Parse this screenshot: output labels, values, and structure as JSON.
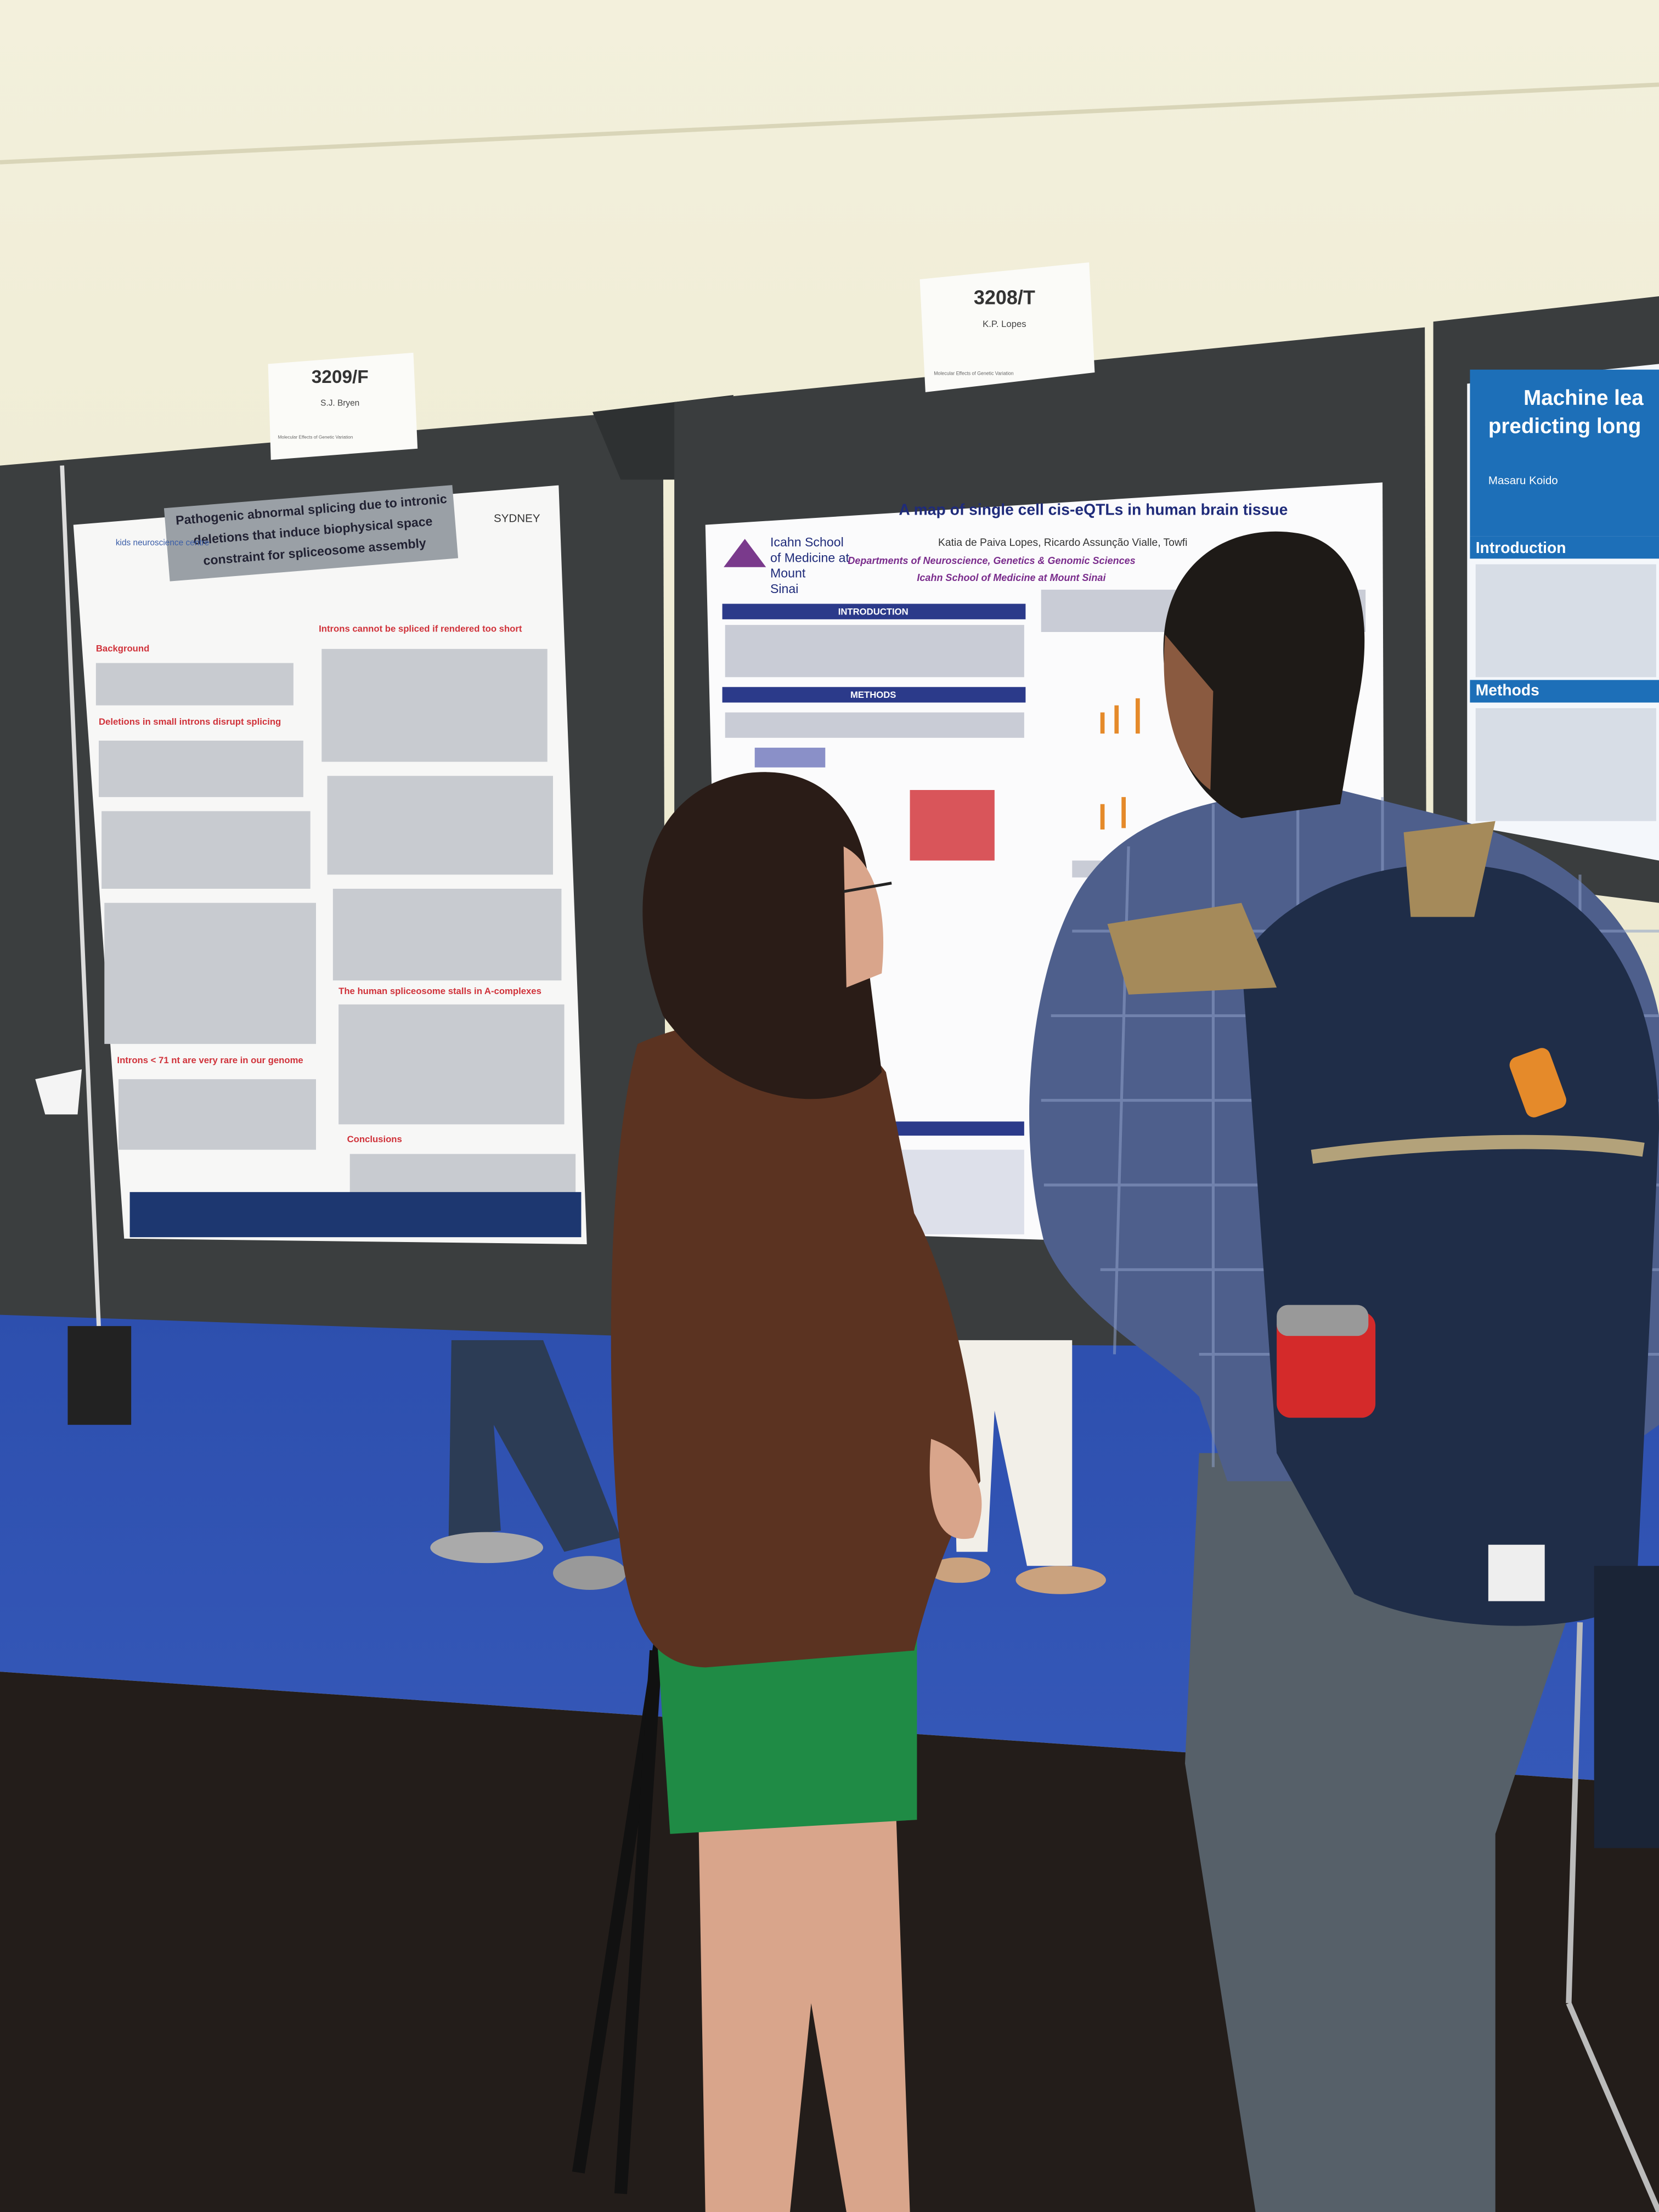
{
  "signs": [
    {
      "number": "3209/F",
      "name": "S.J. Bryen",
      "session": "Molecular Effects of Genetic Variation"
    },
    {
      "number": "3208/T",
      "name": "K.P. Lopes",
      "session": "Molecular Effects of Genetic Variation"
    }
  ],
  "left_poster": {
    "title_lines": [
      "Pathogenic abnormal splicing due to intronic",
      "deletions that induce biophysical space",
      "constraint for spliceosome assembly"
    ],
    "logos": [
      "kids neuroscience centre",
      "SYDNEY"
    ],
    "sections": [
      "Background",
      "Introns cannot be spliced if rendered too short",
      "Deletions in small introns disrupt splicing",
      "The human spliceosome stalls in A-complexes",
      "Introns < 71 nt are very rare in our genome",
      "Conclusions"
    ]
  },
  "middle_poster": {
    "title": "A map of single cell cis-eQTLs in human brain tissue",
    "institution_lines": [
      "Icahn School",
      "of Medicine at",
      "Mount",
      "Sinai"
    ],
    "authors": "Katia de Paiva Lopes, Ricardo Assunção Vialle, Towfi",
    "affiliation_lines": [
      "Departments of Neuroscience, Genetics & Genomic Sciences",
      "Icahn School of Medicine at Mount Sinai"
    ],
    "sections": [
      "INTRODUCTION",
      "METHODS"
    ]
  },
  "right_poster": {
    "title_lines": [
      "Machine lea",
      "predicting long"
    ],
    "authors": "Masaru Koido",
    "sections": [
      "Introduction",
      "Methods"
    ]
  }
}
